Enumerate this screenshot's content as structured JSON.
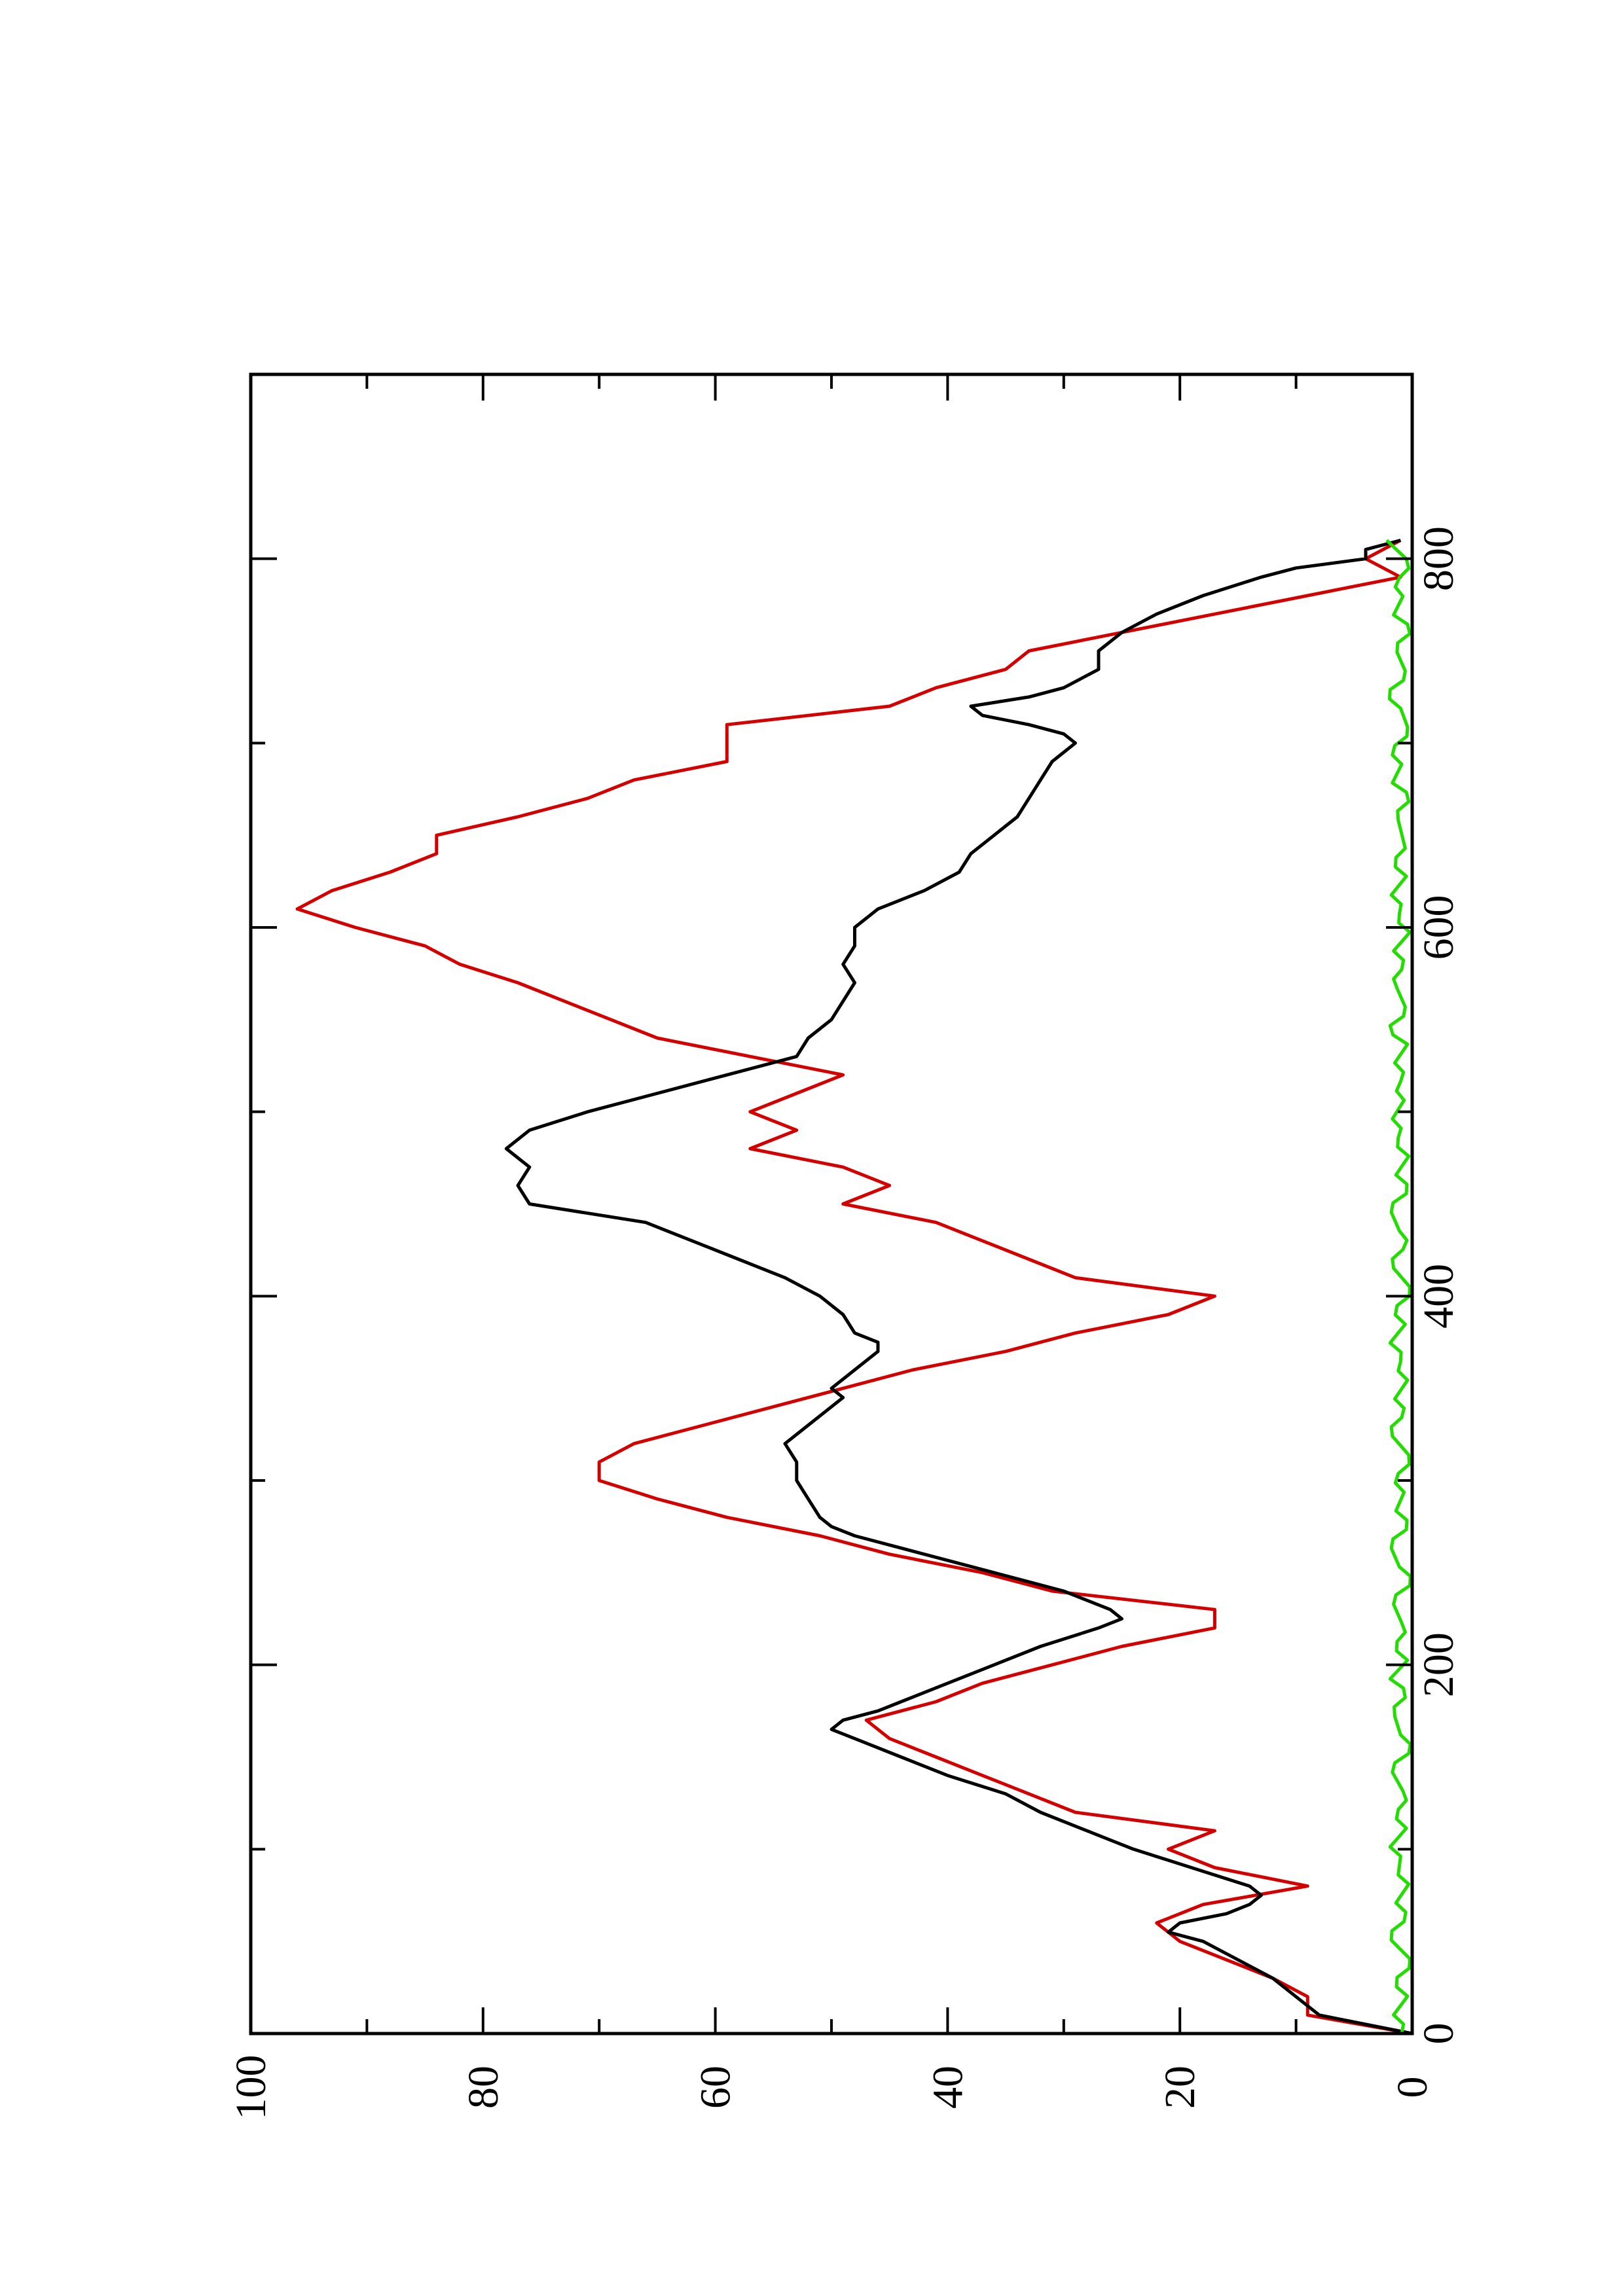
{
  "chart_data": {
    "type": "line",
    "title": "",
    "xlabel": "",
    "ylabel": "",
    "orientation": "rotated 90 degrees counter-clockwise",
    "xlim": [
      0,
      900
    ],
    "ylim": [
      0,
      100
    ],
    "x_ticks": [
      0,
      200,
      400,
      600,
      800
    ],
    "y_ticks": [
      0,
      20,
      40,
      60,
      80,
      100
    ],
    "x_minor_ticks": [
      100,
      300,
      500,
      700
    ],
    "y_minor_ticks": [
      10,
      30,
      50,
      70,
      90
    ],
    "grid": false,
    "legend": "none",
    "series": [
      {
        "color": "#d40000",
        "style": "step",
        "x": [
          0,
          10,
          10,
          20,
          20,
          30,
          30,
          40,
          40,
          50,
          50,
          60,
          60,
          70,
          70,
          80,
          80,
          90,
          90,
          100,
          100,
          110,
          110,
          120,
          120,
          130,
          130,
          140,
          140,
          150,
          150,
          160,
          160,
          170,
          170,
          180,
          180,
          190,
          190,
          200,
          200,
          210,
          210,
          220,
          220,
          230,
          230,
          240,
          240,
          250,
          250,
          260,
          260,
          270,
          270,
          280,
          280,
          290,
          290,
          300,
          300,
          310,
          310,
          320,
          320,
          330,
          330,
          340,
          340,
          350,
          350,
          360,
          360,
          370,
          370,
          380,
          380,
          390,
          390,
          400,
          400,
          410,
          410,
          420,
          420,
          430,
          430,
          440,
          440,
          450,
          450,
          460,
          460,
          470,
          470,
          480,
          480,
          490,
          490,
          500,
          500,
          510,
          510,
          520,
          520,
          530,
          530,
          540,
          540,
          550,
          550,
          560,
          560,
          570,
          570,
          580,
          580,
          590,
          590,
          600,
          600,
          610,
          610,
          620,
          620,
          630,
          630,
          640,
          640,
          650,
          650,
          660,
          660,
          670,
          670,
          680,
          680,
          690,
          690,
          700,
          700,
          710,
          710,
          720,
          720,
          730,
          730,
          740,
          740,
          750,
          750,
          760,
          760,
          770,
          770,
          780,
          780,
          790,
          790,
          800,
          800,
          810
        ],
        "y": [
          0,
          9,
          9,
          9,
          9,
          12,
          12,
          16,
          16,
          20,
          20,
          22,
          22,
          18,
          18,
          9,
          9,
          17,
          17,
          21,
          21,
          17,
          17,
          29,
          29,
          33,
          33,
          37,
          37,
          41,
          41,
          45,
          45,
          47,
          47,
          41,
          41,
          37,
          37,
          31,
          31,
          25,
          25,
          17,
          17,
          17,
          17,
          31,
          31,
          37,
          37,
          45,
          45,
          51,
          51,
          59,
          59,
          65,
          65,
          70,
          70,
          70,
          70,
          67,
          67,
          61,
          61,
          55,
          55,
          49,
          49,
          43,
          43,
          35,
          35,
          29,
          29,
          21,
          21,
          17,
          17,
          29,
          29,
          33,
          33,
          37,
          37,
          41,
          41,
          49,
          49,
          45,
          45,
          49,
          49,
          57,
          57,
          53,
          53,
          57,
          57,
          53,
          53,
          49,
          49,
          57,
          57,
          65,
          65,
          69,
          69,
          73,
          73,
          77,
          77,
          82,
          82,
          85,
          85,
          91,
          91,
          96,
          96,
          93,
          93,
          88,
          88,
          84,
          84,
          84,
          84,
          77,
          77,
          71,
          71,
          67,
          67,
          59,
          59,
          59,
          59,
          59,
          59,
          45,
          45,
          41,
          41,
          35,
          35,
          33,
          33,
          25,
          25,
          17,
          17,
          9,
          9,
          1,
          1,
          4,
          4,
          1
        ]
      },
      {
        "color": "#000000",
        "style": "line",
        "x": [
          0,
          10,
          20,
          30,
          40,
          50,
          55,
          60,
          65,
          70,
          75,
          80,
          90,
          100,
          105,
          110,
          120,
          130,
          140,
          150,
          160,
          165,
          170,
          175,
          180,
          190,
          200,
          210,
          220,
          225,
          230,
          240,
          250,
          260,
          270,
          275,
          280,
          290,
          300,
          310,
          320,
          330,
          340,
          345,
          350,
          360,
          370,
          375,
          380,
          390,
          400,
          410,
          420,
          430,
          440,
          450,
          460,
          470,
          480,
          490,
          500,
          510,
          520,
          530,
          540,
          550,
          560,
          570,
          580,
          590,
          600,
          610,
          620,
          630,
          640,
          650,
          660,
          670,
          680,
          690,
          700,
          705,
          710,
          715,
          720,
          725,
          730,
          740,
          750,
          760,
          770,
          780,
          790,
          795,
          800,
          805,
          810
        ],
        "y": [
          0,
          8,
          10,
          12,
          15,
          18,
          21,
          20,
          16,
          14,
          13,
          14,
          19,
          24,
          26,
          28,
          32,
          35,
          40,
          44,
          48,
          50,
          49,
          46,
          44,
          40,
          36,
          32,
          27,
          25,
          26,
          30,
          36,
          42,
          48,
          50,
          51,
          52,
          53,
          53,
          54,
          52,
          50,
          49,
          50,
          48,
          46,
          46,
          48,
          49,
          51,
          54,
          58,
          62,
          66,
          76,
          77,
          76,
          78,
          76,
          71,
          65,
          59,
          53,
          52,
          50,
          49,
          48,
          49,
          48,
          48,
          46,
          42,
          39,
          38,
          36,
          34,
          33,
          32,
          31,
          29,
          30,
          33,
          37,
          38,
          33,
          30,
          27,
          27,
          25,
          22,
          18,
          13,
          10,
          4,
          4,
          1
        ]
      },
      {
        "color": "#22dd00",
        "style": "noise",
        "x_range": [
          0,
          810
        ],
        "mean": 1.0,
        "amplitude": 0.9,
        "y": [
          0.9,
          1.6,
          0.4,
          1.3,
          0.2,
          1.8,
          0.7,
          1.4,
          0.3,
          1.1,
          1.9,
          0.5,
          1.2,
          0.8,
          1.7,
          0.3,
          1.0,
          1.5,
          0.6,
          1.9,
          0.4,
          1.3,
          0.9,
          1.6,
          0.2,
          1.1,
          1.8,
          0.5,
          1.4,
          0.7,
          1.2,
          0.3,
          1.7,
          0.9,
          1.5,
          0.4,
          1.0,
          1.9,
          0.6,
          1.3,
          0.2,
          1.6,
          0.8,
          1.1,
          1.8,
          0.5,
          1.4,
          0.3,
          1.2,
          1.7,
          0.7,
          1.0,
          1.5,
          0.4,
          1.9,
          0.6,
          1.3,
          0.9,
          1.6,
          0.2,
          1.1,
          1.8,
          0.5,
          1.4,
          0.8,
          1.2,
          0.3,
          1.7,
          0.9,
          1.5,
          0.4,
          1.0,
          1.9,
          0.6,
          1.3,
          0.2,
          1.6,
          0.8,
          1.1,
          0.5,
          2.2
        ]
      }
    ]
  }
}
